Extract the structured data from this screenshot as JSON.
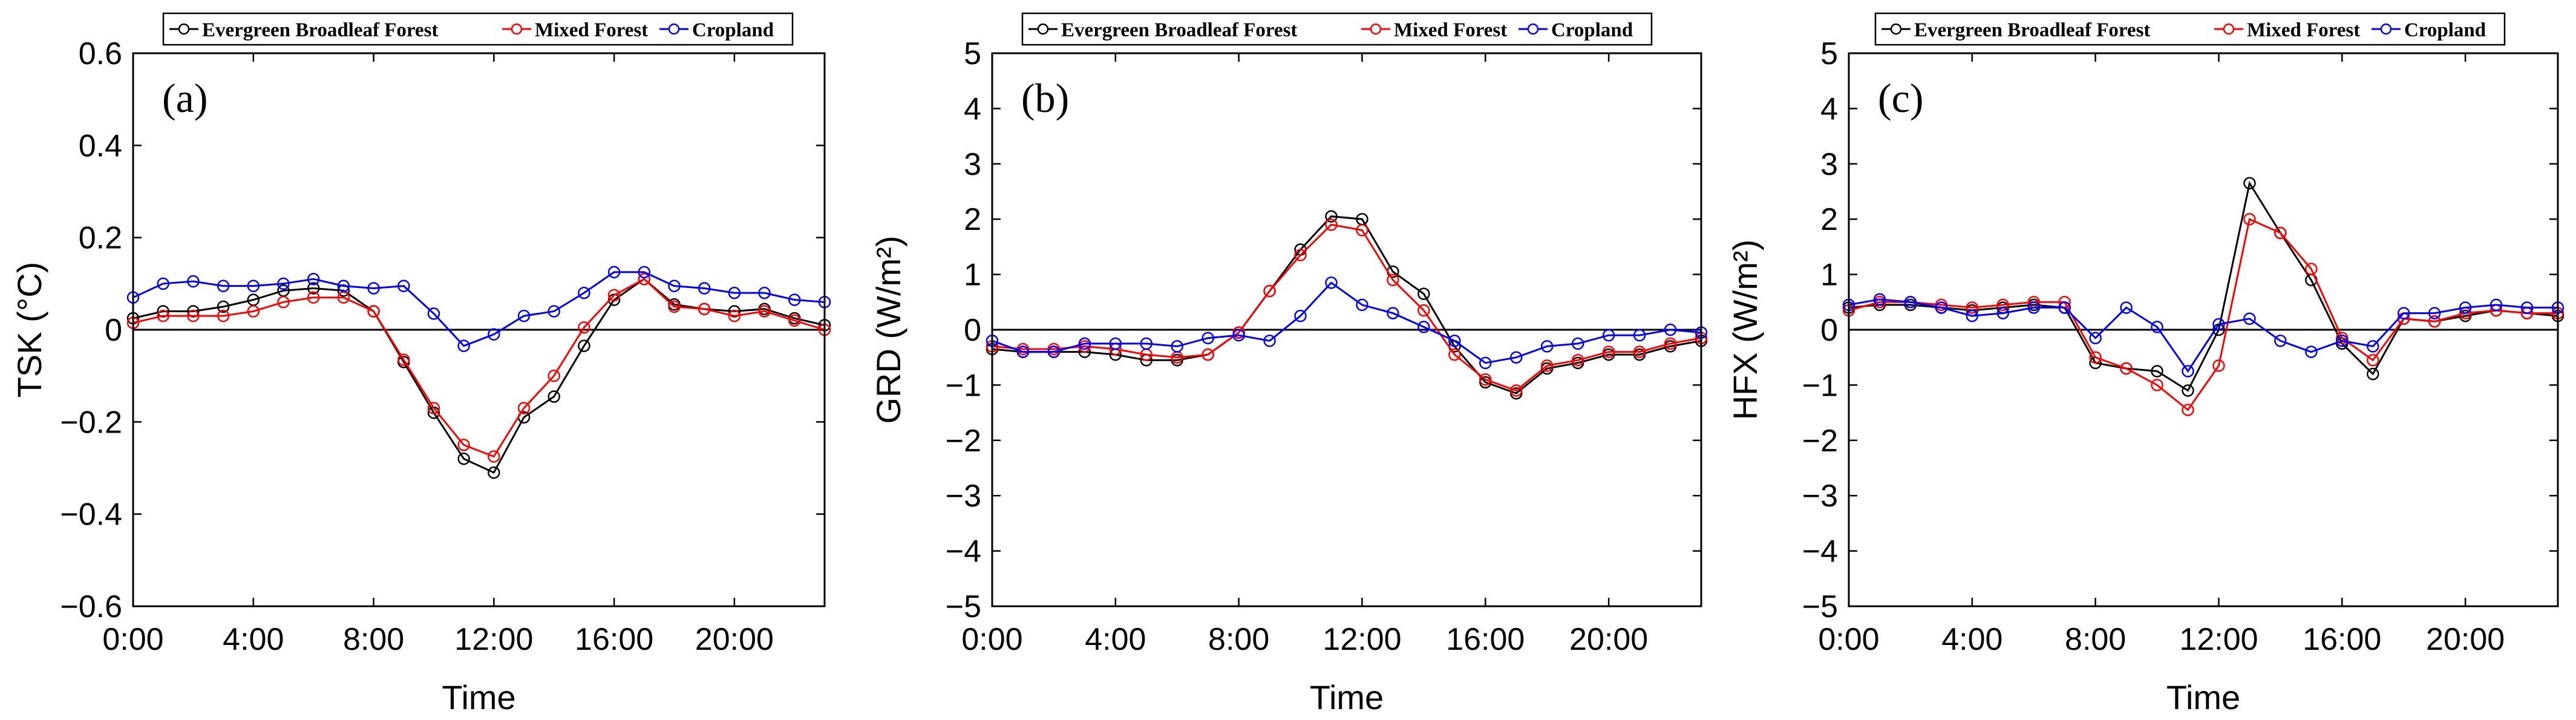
{
  "chart_data": [
    {
      "type": "line",
      "panel_label": "(a)",
      "xlabel": "Time",
      "ylabel": "TSK (°C)",
      "ylim": [
        -0.6,
        0.6
      ],
      "yticks": [
        -0.6,
        -0.4,
        -0.2,
        0,
        0.2,
        0.4,
        0.6
      ],
      "ytick_labels": [
        "−0.6",
        "−0.4",
        "−0.2",
        "0",
        "0.2",
        "0.4",
        "0.6"
      ],
      "xlim": [
        0,
        23
      ],
      "xticks": [
        0,
        4,
        8,
        12,
        16,
        20
      ],
      "xtick_labels": [
        "0:00",
        "4:00",
        "8:00",
        "12:00",
        "16:00",
        "20:00"
      ],
      "x": [
        0,
        1,
        2,
        3,
        4,
        5,
        6,
        7,
        8,
        9,
        10,
        11,
        12,
        13,
        14,
        15,
        16,
        17,
        18,
        19,
        20,
        21,
        22,
        23
      ],
      "legend_position": "top",
      "series": [
        {
          "name": "Evergreen Broadleaf Forest",
          "color": "#000000",
          "values": [
            0.025,
            0.04,
            0.04,
            0.05,
            0.065,
            0.085,
            0.09,
            0.085,
            0.04,
            -0.07,
            -0.18,
            -0.28,
            -0.31,
            -0.19,
            -0.145,
            -0.035,
            0.065,
            0.11,
            0.055,
            0.045,
            0.04,
            0.045,
            0.025,
            0.01
          ]
        },
        {
          "name": "Mixed Forest",
          "color": "#ff0000",
          "values": [
            0.015,
            0.03,
            0.03,
            0.03,
            0.04,
            0.06,
            0.07,
            0.07,
            0.04,
            -0.065,
            -0.17,
            -0.25,
            -0.275,
            -0.17,
            -0.1,
            0.005,
            0.075,
            0.11,
            0.05,
            0.045,
            0.03,
            0.04,
            0.02,
            0.0
          ]
        },
        {
          "name": "Cropland",
          "color": "#0000ff",
          "values": [
            0.07,
            0.1,
            0.105,
            0.095,
            0.095,
            0.1,
            0.11,
            0.095,
            0.09,
            0.095,
            0.035,
            -0.035,
            -0.01,
            0.03,
            0.04,
            0.08,
            0.125,
            0.125,
            0.095,
            0.09,
            0.08,
            0.08,
            0.065,
            0.06
          ]
        }
      ]
    },
    {
      "type": "line",
      "panel_label": "(b)",
      "xlabel": "Time",
      "ylabel": "GRD (W/m²)",
      "ylim": [
        -5,
        5
      ],
      "yticks": [
        -5,
        -4,
        -3,
        -2,
        -1,
        0,
        1,
        2,
        3,
        4,
        5
      ],
      "ytick_labels": [
        "−5",
        "−4",
        "−3",
        "−2",
        "−1",
        "0",
        "1",
        "2",
        "3",
        "4",
        "5"
      ],
      "xlim": [
        0,
        23
      ],
      "xticks": [
        0,
        4,
        8,
        12,
        16,
        20
      ],
      "xtick_labels": [
        "0:00",
        "4:00",
        "8:00",
        "12:00",
        "16:00",
        "20:00"
      ],
      "x": [
        0,
        1,
        2,
        3,
        4,
        5,
        6,
        7,
        8,
        9,
        10,
        11,
        12,
        13,
        14,
        15,
        16,
        17,
        18,
        19,
        20,
        21,
        22,
        23
      ],
      "legend_position": "top",
      "series": [
        {
          "name": "Evergreen Broadleaf Forest",
          "color": "#000000",
          "values": [
            -0.35,
            -0.4,
            -0.4,
            -0.4,
            -0.45,
            -0.55,
            -0.55,
            -0.45,
            -0.05,
            0.7,
            1.45,
            2.05,
            2.0,
            1.05,
            0.65,
            -0.3,
            -0.95,
            -1.15,
            -0.7,
            -0.6,
            -0.45,
            -0.45,
            -0.3,
            -0.2
          ]
        },
        {
          "name": "Mixed Forest",
          "color": "#ff0000",
          "values": [
            -0.3,
            -0.35,
            -0.35,
            -0.3,
            -0.35,
            -0.45,
            -0.5,
            -0.45,
            -0.05,
            0.7,
            1.35,
            1.9,
            1.8,
            0.9,
            0.35,
            -0.45,
            -0.9,
            -1.1,
            -0.65,
            -0.55,
            -0.4,
            -0.4,
            -0.25,
            -0.15
          ]
        },
        {
          "name": "Cropland",
          "color": "#0000ff",
          "values": [
            -0.2,
            -0.4,
            -0.4,
            -0.25,
            -0.25,
            -0.25,
            -0.3,
            -0.15,
            -0.1,
            -0.2,
            0.25,
            0.85,
            0.45,
            0.3,
            0.05,
            -0.2,
            -0.6,
            -0.5,
            -0.3,
            -0.25,
            -0.1,
            -0.1,
            0.0,
            -0.05
          ]
        }
      ]
    },
    {
      "type": "line",
      "panel_label": "(c)",
      "xlabel": "Time",
      "ylabel": "HFX (W/m²)",
      "ylim": [
        -5,
        5
      ],
      "yticks": [
        -5,
        -4,
        -3,
        -2,
        -1,
        0,
        1,
        2,
        3,
        4,
        5
      ],
      "ytick_labels": [
        "−5",
        "−4",
        "−3",
        "−2",
        "−1",
        "0",
        "1",
        "2",
        "3",
        "4",
        "5"
      ],
      "xlim": [
        0,
        23
      ],
      "xticks": [
        0,
        4,
        8,
        12,
        16,
        20
      ],
      "xtick_labels": [
        "0:00",
        "4:00",
        "8:00",
        "12:00",
        "16:00",
        "20:00"
      ],
      "x": [
        0,
        1,
        2,
        3,
        4,
        5,
        6,
        7,
        8,
        9,
        10,
        11,
        12,
        13,
        14,
        15,
        16,
        17,
        18,
        19,
        20,
        21,
        22,
        23
      ],
      "legend_position": "top",
      "series": [
        {
          "name": "Evergreen Broadleaf Forest",
          "color": "#000000",
          "values": [
            0.4,
            0.45,
            0.45,
            0.4,
            0.35,
            0.4,
            0.45,
            0.4,
            -0.6,
            -0.7,
            -0.75,
            -1.1,
            0.0,
            2.65,
            1.75,
            0.9,
            -0.25,
            -0.8,
            0.2,
            0.15,
            0.25,
            0.35,
            0.3,
            0.25
          ]
        },
        {
          "name": "Mixed Forest",
          "color": "#ff0000",
          "values": [
            0.35,
            0.5,
            0.5,
            0.45,
            0.4,
            0.45,
            0.5,
            0.5,
            -0.5,
            -0.7,
            -1.0,
            -1.45,
            -0.65,
            2.0,
            1.75,
            1.1,
            -0.15,
            -0.55,
            0.2,
            0.15,
            0.3,
            0.35,
            0.3,
            0.3
          ]
        },
        {
          "name": "Cropland",
          "color": "#0000ff",
          "values": [
            0.45,
            0.55,
            0.5,
            0.4,
            0.25,
            0.3,
            0.4,
            0.4,
            -0.15,
            0.4,
            0.05,
            -0.75,
            0.1,
            0.2,
            -0.2,
            -0.4,
            -0.2,
            -0.3,
            0.3,
            0.3,
            0.4,
            0.45,
            0.4,
            0.4
          ]
        }
      ]
    }
  ]
}
